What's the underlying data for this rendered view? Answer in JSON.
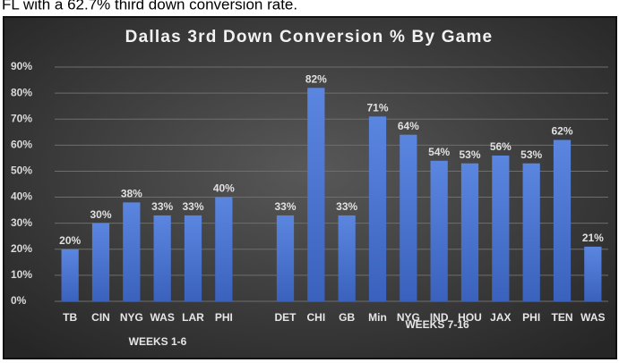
{
  "caption": "FL with a 62.7% third down conversion rate.",
  "chart_data": {
    "type": "bar",
    "title": "Dallas 3rd Down Conversion % By Game",
    "categories": [
      "TB",
      "CIN",
      "NYG",
      "WAS",
      "LAR",
      "PHI",
      null,
      "DET",
      "CHI",
      "GB",
      "Min",
      "NYG",
      "IND",
      "HOU",
      "JAX",
      "PHI",
      "TEN",
      "WAS"
    ],
    "values": [
      20,
      30,
      38,
      33,
      33,
      40,
      null,
      33,
      82,
      33,
      71,
      64,
      54,
      53,
      56,
      53,
      62,
      21
    ],
    "value_labels": [
      "20%",
      "30%",
      "38%",
      "33%",
      "33%",
      "40%",
      null,
      "33%",
      "82%",
      "33%",
      "71%",
      "64%",
      "54%",
      "53%",
      "56%",
      "53%",
      "62%",
      "21%"
    ],
    "groups": [
      "WEEKS 1-6",
      "WEEKS 7-16"
    ],
    "color": "#4a74d0",
    "ylim": [
      0,
      90
    ],
    "yticks": [
      {
        "value": 0,
        "label": "0%"
      },
      {
        "value": 10,
        "label": "10%"
      },
      {
        "value": 20,
        "label": "20%"
      },
      {
        "value": 30,
        "label": "30%"
      },
      {
        "value": 40,
        "label": "40%"
      },
      {
        "value": 50,
        "label": "50%"
      },
      {
        "value": 60,
        "label": "60%"
      },
      {
        "value": 70,
        "label": "70%"
      },
      {
        "value": 80,
        "label": "80%"
      },
      {
        "value": 90,
        "label": "90%"
      }
    ],
    "grid": true
  }
}
